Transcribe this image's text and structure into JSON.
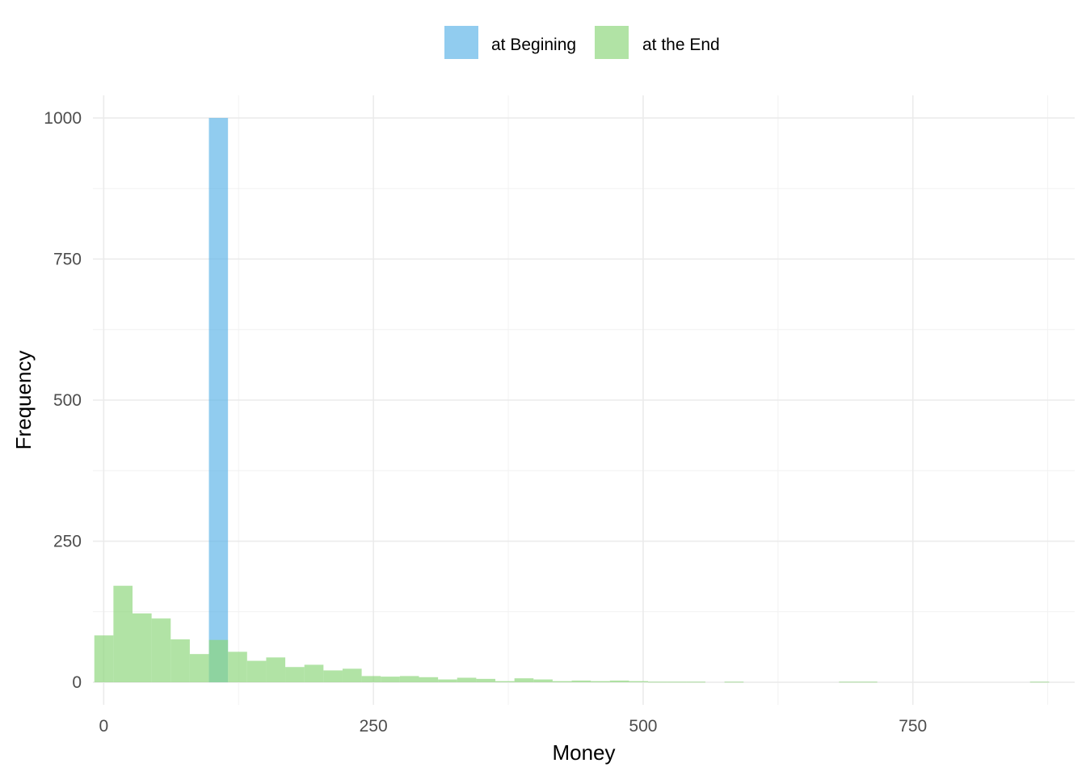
{
  "chart_data": {
    "type": "bar",
    "title": "",
    "xlabel": "Money",
    "ylabel": "Frequency",
    "xlim": [
      -10,
      900
    ],
    "ylim": [
      -40,
      1040
    ],
    "x_ticks": [
      0,
      250,
      500,
      750
    ],
    "y_ticks": [
      0,
      250,
      500,
      750,
      1000
    ],
    "grid": true,
    "legend_position": "top",
    "bin_width": 17.7,
    "series": [
      {
        "name": "at Begining",
        "color": "#5DB4E8",
        "bins": [
          {
            "x0": 97.5,
            "count": 1000
          }
        ]
      },
      {
        "name": "at the End",
        "color": "#8CD67A",
        "bins": [
          {
            "x0": -8.7,
            "count": 83
          },
          {
            "x0": 9.0,
            "count": 171
          },
          {
            "x0": 26.7,
            "count": 122
          },
          {
            "x0": 44.4,
            "count": 113
          },
          {
            "x0": 62.1,
            "count": 76
          },
          {
            "x0": 79.8,
            "count": 50
          },
          {
            "x0": 97.5,
            "count": 75
          },
          {
            "x0": 115.2,
            "count": 54
          },
          {
            "x0": 132.9,
            "count": 38
          },
          {
            "x0": 150.6,
            "count": 44
          },
          {
            "x0": 168.3,
            "count": 27
          },
          {
            "x0": 186.0,
            "count": 31
          },
          {
            "x0": 203.7,
            "count": 21
          },
          {
            "x0": 221.4,
            "count": 24
          },
          {
            "x0": 239.1,
            "count": 11
          },
          {
            "x0": 256.8,
            "count": 10
          },
          {
            "x0": 274.5,
            "count": 11
          },
          {
            "x0": 292.2,
            "count": 9
          },
          {
            "x0": 309.9,
            "count": 5
          },
          {
            "x0": 327.6,
            "count": 8
          },
          {
            "x0": 345.3,
            "count": 6
          },
          {
            "x0": 363.0,
            "count": 2
          },
          {
            "x0": 380.7,
            "count": 7
          },
          {
            "x0": 398.4,
            "count": 5
          },
          {
            "x0": 416.1,
            "count": 2
          },
          {
            "x0": 433.8,
            "count": 3
          },
          {
            "x0": 451.5,
            "count": 2
          },
          {
            "x0": 469.2,
            "count": 3
          },
          {
            "x0": 486.9,
            "count": 2
          },
          {
            "x0": 504.6,
            "count": 1
          },
          {
            "x0": 522.3,
            "count": 1
          },
          {
            "x0": 540.0,
            "count": 1
          },
          {
            "x0": 575.4,
            "count": 1
          },
          {
            "x0": 681.6,
            "count": 1
          },
          {
            "x0": 699.3,
            "count": 1
          },
          {
            "x0": 858.6,
            "count": 1
          }
        ]
      }
    ]
  }
}
